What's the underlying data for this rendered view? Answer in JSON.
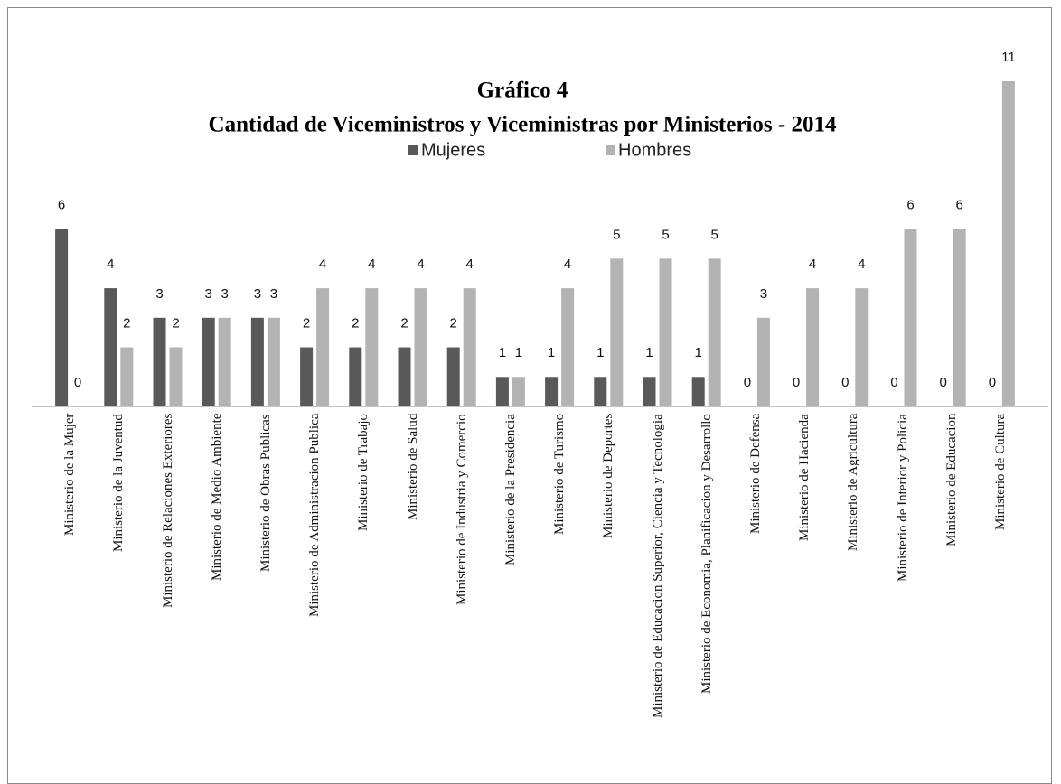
{
  "chart_data": {
    "type": "bar",
    "title": "Gráfico 4",
    "subtitle": "Cantidad de Viceministros y Viceministras por Ministerios - 2014",
    "categories": [
      "Ministerio de la Mujer",
      "Ministerio de la Juventud",
      "Ministerio de Relaciones Exteriores",
      "Ministerio de Medio Ambiente",
      "Ministerio de Obras Publicas",
      "Ministerio de Administracion Publica",
      "Ministerio de Trabajo",
      "Ministerio de Salud",
      "Ministerio de Industria y Comercio",
      "Ministerio de la Presidencia",
      "Ministerio de Turismo",
      "Ministerio de Deportes",
      "Ministerio de Educacion Superior, Ciencia y Tecnologia",
      "Ministerio de Economia, Planificacion y Desarrollo",
      "Ministerio de Defensa",
      "Ministerio de Hacienda",
      "Ministerio de Agricultura",
      "Ministerio de Interior y Policia",
      "Ministerio de Educacion",
      "Ministerio de Cultura"
    ],
    "series": [
      {
        "name": "Mujeres",
        "color": "#595959",
        "values": [
          6,
          4,
          3,
          3,
          3,
          2,
          2,
          2,
          2,
          1,
          1,
          1,
          1,
          1,
          0,
          0,
          0,
          0,
          0,
          0
        ]
      },
      {
        "name": "Hombres",
        "color": "#b3b3b3",
        "values": [
          0,
          2,
          2,
          3,
          3,
          4,
          4,
          4,
          4,
          1,
          4,
          5,
          5,
          5,
          3,
          4,
          4,
          6,
          6,
          11
        ]
      }
    ],
    "ylim": [
      0,
      11
    ],
    "legend": "top",
    "data_labels": true
  }
}
